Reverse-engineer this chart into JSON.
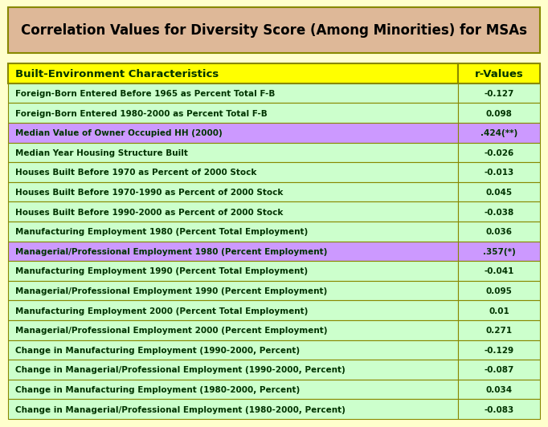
{
  "title": "Correlation Values for Diversity Score (Among Minorities) for MSAs",
  "title_bg": "#deb898",
  "header": [
    "Built-Environment Characteristics",
    "r-Values"
  ],
  "header_bg": "#ffff00",
  "header_text_color": "#003300",
  "rows": [
    [
      "Foreign-Born Entered Before 1965 as Percent Total F-B",
      "-0.127"
    ],
    [
      "Foreign-Born Entered 1980-2000 as Percent Total F-B",
      "0.098"
    ],
    [
      "Median Value of Owner Occupied HH (2000)",
      ".424(**)"
    ],
    [
      "Median Year Housing Structure Built",
      "-0.026"
    ],
    [
      "Houses Built Before 1970 as Percent of 2000 Stock",
      "-0.013"
    ],
    [
      "Houses Built Before 1970-1990 as Percent of 2000 Stock",
      "0.045"
    ],
    [
      "Houses Built Before 1990-2000 as Percent of 2000 Stock",
      "-0.038"
    ],
    [
      "Manufacturing Employment 1980 (Percent Total Employment)",
      "0.036"
    ],
    [
      "Managerial/Professional Employment 1980 (Percent Employment)",
      ".357(*)"
    ],
    [
      "Manufacturing Employment 1990 (Percent Total Employment)",
      "-0.041"
    ],
    [
      "Managerial/Professional Employment 1990 (Percent Employment)",
      "0.095"
    ],
    [
      "Manufacturing Employment 2000 (Percent Total Employment)",
      "0.01"
    ],
    [
      "Managerial/Professional Employment 2000 (Percent Employment)",
      "0.271"
    ],
    [
      "Change in Manufacturing Employment (1990-2000, Percent)",
      "-0.129"
    ],
    [
      "Change in Managerial/Professional Employment (1990-2000, Percent)",
      "-0.087"
    ],
    [
      "Change in Manufacturing Employment (1980-2000, Percent)",
      "0.034"
    ],
    [
      "Change in Managerial/Professional Employment (1980-2000, Percent)",
      "-0.083"
    ]
  ],
  "highlighted_rows": [
    2,
    8
  ],
  "highlight_bg": "#cc99ff",
  "normal_bg": "#ccffcc",
  "outer_bg": "#ffffcc",
  "border_color": "#888800",
  "text_color": "#003300",
  "font_size": 7.5,
  "header_font_size": 9.5,
  "title_font_size": 12
}
